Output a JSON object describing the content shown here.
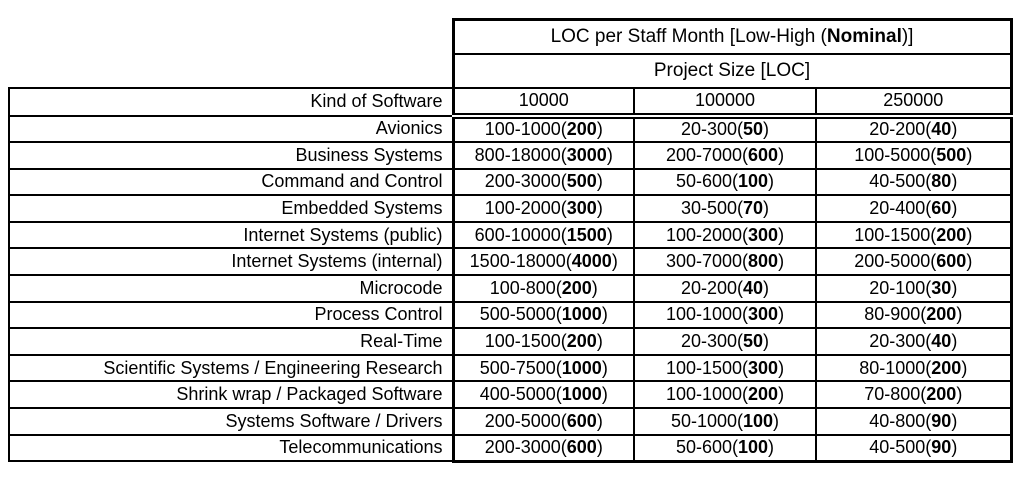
{
  "table": {
    "title": {
      "prefix": "LOC per Staff Month [Low-High (",
      "bold": "Nominal",
      "suffix": ")]"
    },
    "subtitle": "Project Size [LOC]",
    "label_header": "Kind of Software",
    "size_headers": [
      "10000",
      "100000",
      "250000"
    ],
    "cell_format": {
      "open": "(",
      "close": ")"
    },
    "rows": [
      {
        "label": "Avionics",
        "cells": [
          {
            "range": "100-1000",
            "nominal": "200"
          },
          {
            "range": "20-300",
            "nominal": "50"
          },
          {
            "range": "20-200",
            "nominal": "40"
          }
        ]
      },
      {
        "label": "Business Systems",
        "cells": [
          {
            "range": "800-18000",
            "nominal": "3000"
          },
          {
            "range": "200-7000",
            "nominal": "600"
          },
          {
            "range": "100-5000",
            "nominal": "500"
          }
        ]
      },
      {
        "label": "Command and Control",
        "cells": [
          {
            "range": "200-3000",
            "nominal": "500"
          },
          {
            "range": "50-600",
            "nominal": "100"
          },
          {
            "range": "40-500",
            "nominal": "80"
          }
        ]
      },
      {
        "label": "Embedded Systems",
        "cells": [
          {
            "range": "100-2000",
            "nominal": "300"
          },
          {
            "range": "30-500",
            "nominal": "70"
          },
          {
            "range": "20-400",
            "nominal": "60"
          }
        ]
      },
      {
        "label": "Internet Systems (public)",
        "cells": [
          {
            "range": "600-10000",
            "nominal": "1500"
          },
          {
            "range": "100-2000",
            "nominal": "300"
          },
          {
            "range": "100-1500",
            "nominal": "200"
          }
        ]
      },
      {
        "label": "Internet Systems (internal)",
        "cells": [
          {
            "range": "1500-18000",
            "nominal": "4000"
          },
          {
            "range": "300-7000",
            "nominal": "800"
          },
          {
            "range": "200-5000",
            "nominal": "600"
          }
        ]
      },
      {
        "label": "Microcode",
        "cells": [
          {
            "range": "100-800",
            "nominal": "200"
          },
          {
            "range": "20-200",
            "nominal": "40"
          },
          {
            "range": "20-100",
            "nominal": "30"
          }
        ]
      },
      {
        "label": "Process Control",
        "cells": [
          {
            "range": "500-5000",
            "nominal": "1000"
          },
          {
            "range": "100-1000",
            "nominal": "300"
          },
          {
            "range": "80-900",
            "nominal": "200"
          }
        ]
      },
      {
        "label": "Real-Time",
        "cells": [
          {
            "range": "100-1500",
            "nominal": "200"
          },
          {
            "range": "20-300",
            "nominal": "50"
          },
          {
            "range": "20-300",
            "nominal": "40"
          }
        ]
      },
      {
        "label": "Scientific Systems / Engineering Research",
        "cells": [
          {
            "range": "500-7500",
            "nominal": "1000"
          },
          {
            "range": "100-1500",
            "nominal": "300"
          },
          {
            "range": "80-1000",
            "nominal": "200"
          }
        ]
      },
      {
        "label": "Shrink wrap / Packaged Software",
        "cells": [
          {
            "range": "400-5000",
            "nominal": "1000"
          },
          {
            "range": "100-1000",
            "nominal": "200"
          },
          {
            "range": "70-800",
            "nominal": "200"
          }
        ]
      },
      {
        "label": "Systems Software / Drivers",
        "cells": [
          {
            "range": "200-5000",
            "nominal": "600"
          },
          {
            "range": "50-1000",
            "nominal": "100"
          },
          {
            "range": "40-800",
            "nominal": "90"
          }
        ]
      },
      {
        "label": "Telecommunications",
        "cells": [
          {
            "range": "200-3000",
            "nominal": "600"
          },
          {
            "range": "50-600",
            "nominal": "100"
          },
          {
            "range": "40-500",
            "nominal": "90"
          }
        ]
      }
    ],
    "colors": {
      "border": "#000000",
      "text": "#000000",
      "background": "#ffffff"
    }
  }
}
